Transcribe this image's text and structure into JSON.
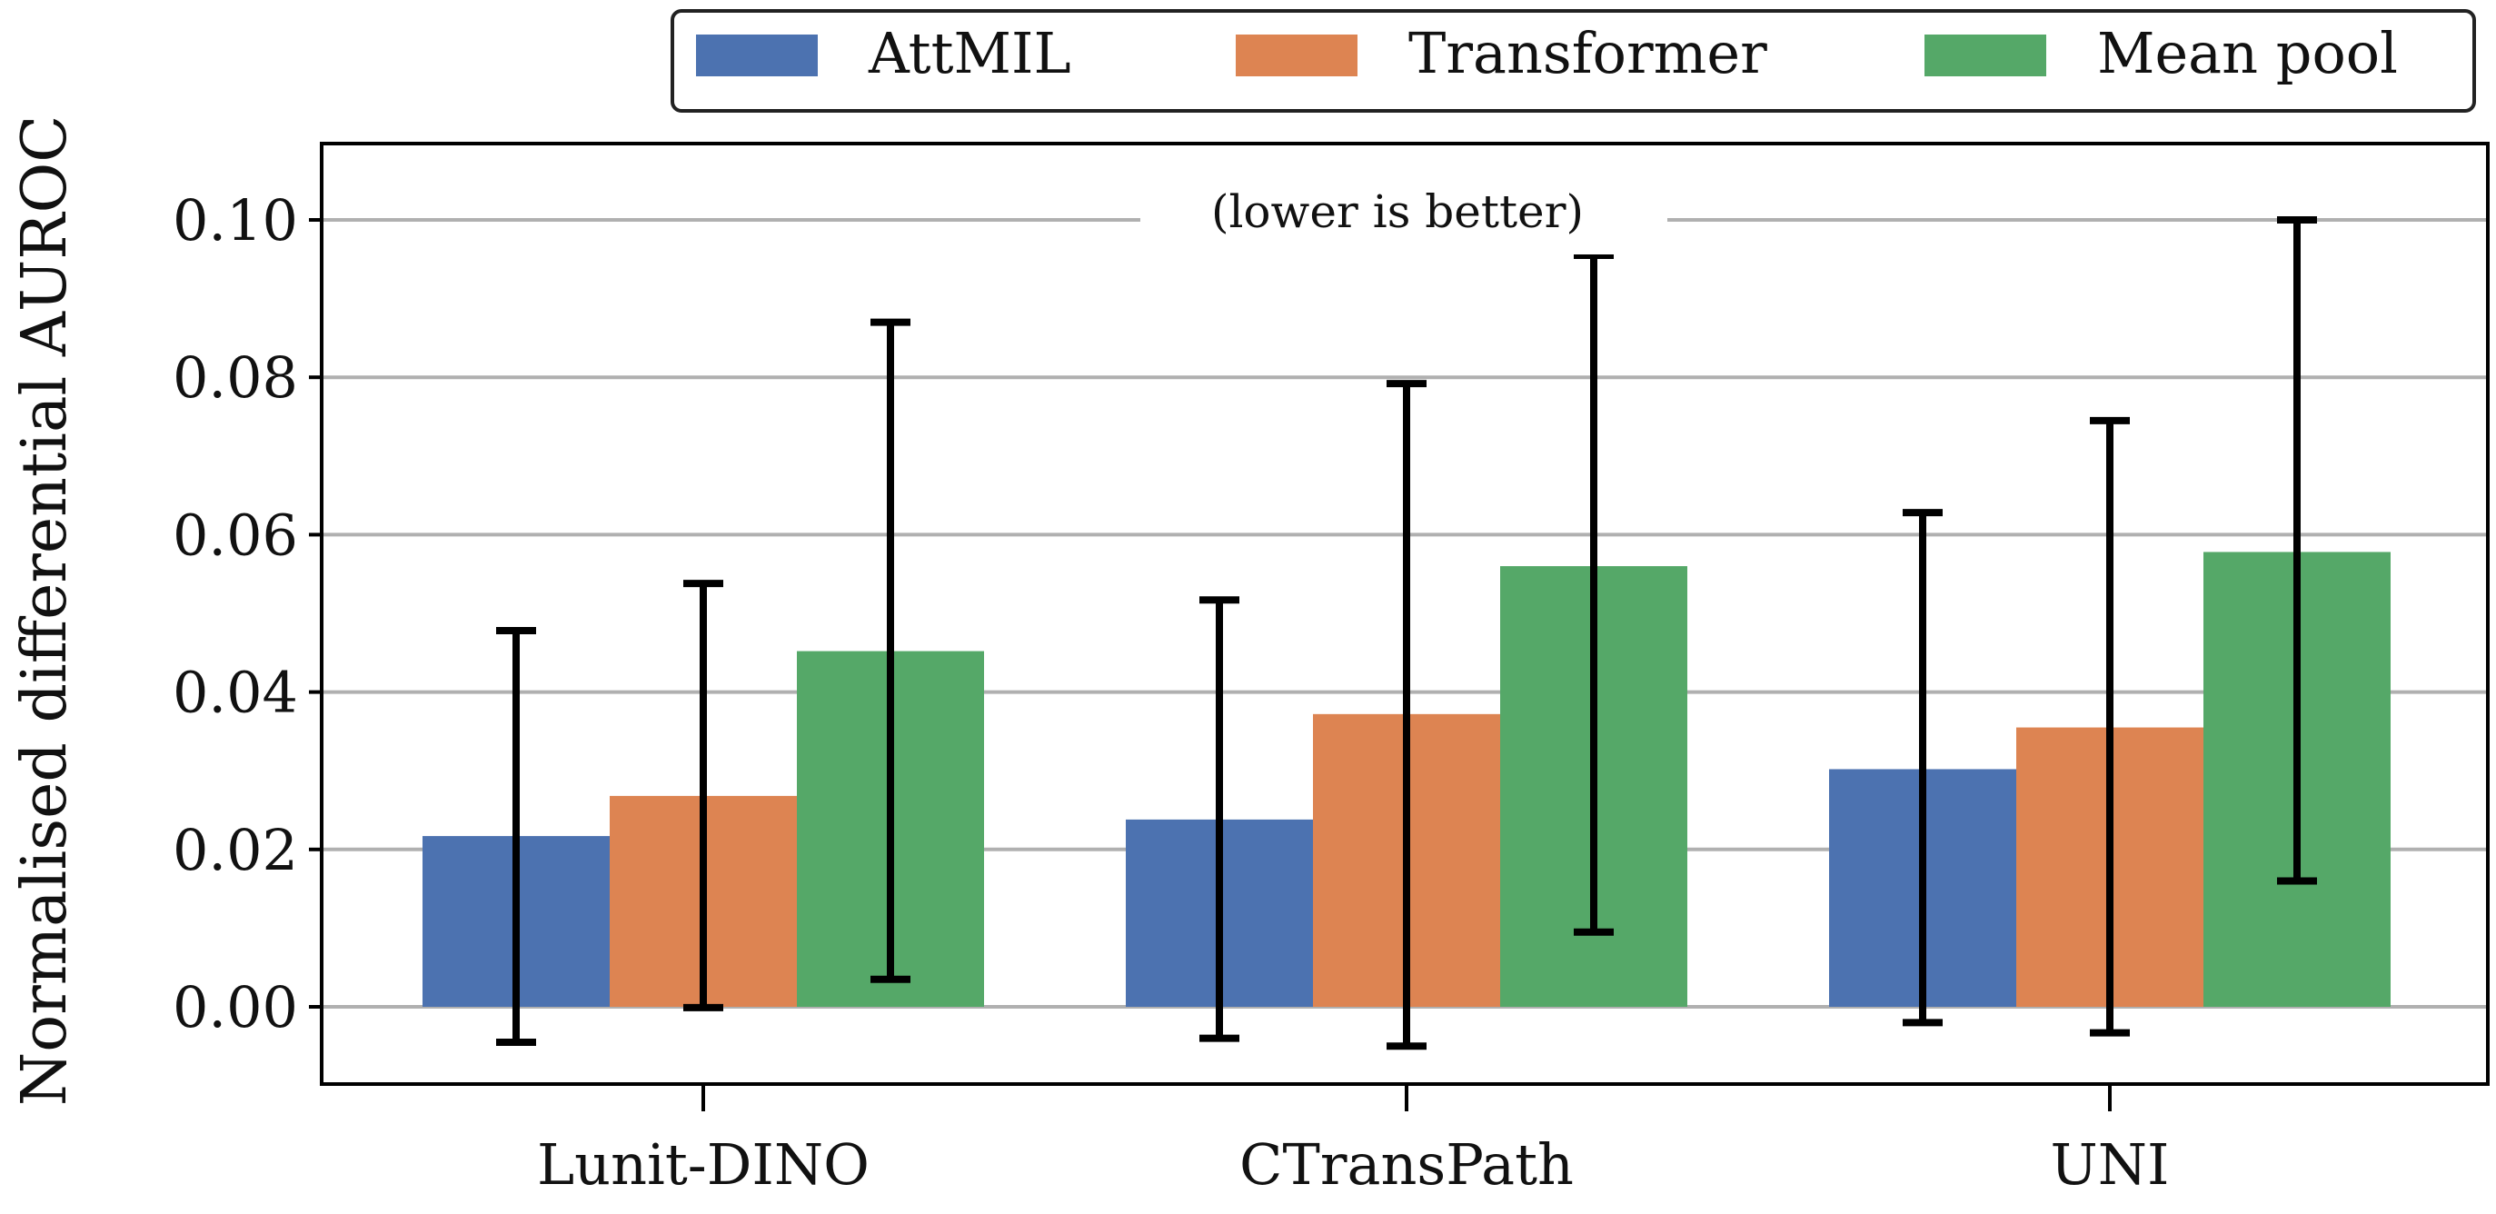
{
  "chart_data": {
    "type": "bar",
    "title": "",
    "xlabel": "",
    "ylabel": "Normalised differential AUROC",
    "annotation": "(lower is better)",
    "categories": [
      "Lunit-DINO",
      "CTransPath",
      "UNI"
    ],
    "series": [
      {
        "name": "AttMIL",
        "color": "#4c72b0",
        "values": [
          0.0217,
          0.0238,
          0.0302
        ],
        "err_low": [
          -0.0045,
          -0.004,
          -0.002
        ],
        "err_high": [
          0.0478,
          0.0517,
          0.0628
        ]
      },
      {
        "name": "Transformer",
        "color": "#dd8452",
        "values": [
          0.0268,
          0.0372,
          0.0355
        ],
        "err_low": [
          -0.0001,
          -0.005,
          -0.0033
        ],
        "err_high": [
          0.0538,
          0.0792,
          0.0745
        ]
      },
      {
        "name": "Mean pool",
        "color": "#55a868",
        "values": [
          0.0452,
          0.056,
          0.0578
        ],
        "err_low": [
          0.0035,
          0.0095,
          0.016
        ],
        "err_high": [
          0.087,
          0.0955,
          0.1
        ]
      }
    ],
    "ylim": [
      -0.01,
      0.11
    ],
    "yticks": [
      0.0,
      0.02,
      0.04,
      0.06,
      0.08,
      0.1
    ],
    "ytick_labels": [
      "0.00",
      "0.02",
      "0.04",
      "0.06",
      "0.08",
      "0.10"
    ],
    "grid": "horizontal",
    "legend_position": "top-right"
  }
}
